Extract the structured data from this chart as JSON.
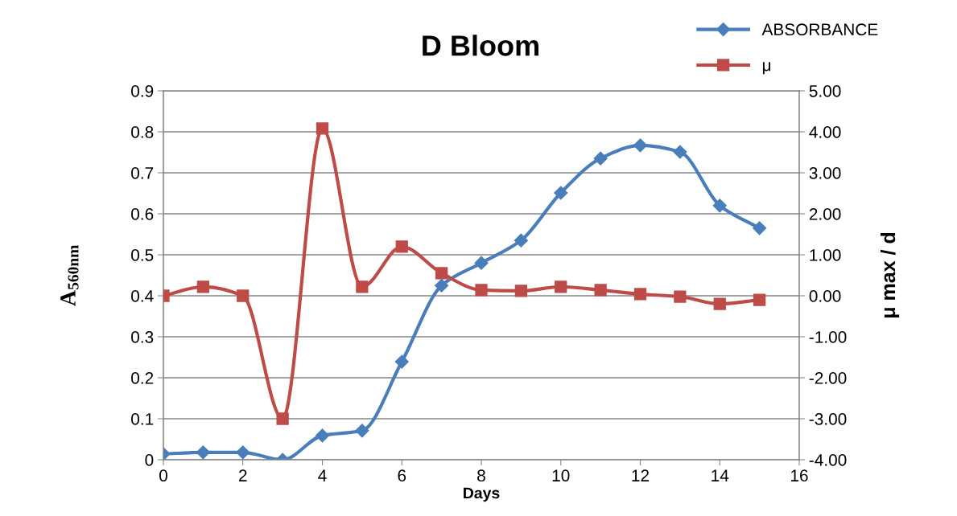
{
  "chart_data": {
    "type": "line",
    "title": "D Bloom",
    "xlabel": "Days",
    "ylabel": "A$_{560nm}$",
    "y2label": "μ max / d",
    "x": [
      0,
      1,
      2,
      3,
      4,
      5,
      6,
      7,
      8,
      9,
      10,
      11,
      12,
      13,
      14,
      15
    ],
    "series": [
      {
        "name": "ABSORBANCE",
        "color": "#4a7ebb",
        "marker": "diamond",
        "values": [
          0.014,
          0.018,
          0.018,
          0.0,
          0.059,
          0.071,
          0.239,
          0.425,
          0.48,
          0.535,
          0.651,
          0.735,
          0.767,
          0.751,
          0.62,
          0.565
        ]
      },
      {
        "name": "μ",
        "color": "#be4b48",
        "marker": "square",
        "axis": "y2",
        "values": [
          0.0,
          0.22,
          0.0,
          -3.0,
          4.08,
          0.22,
          1.2,
          0.55,
          0.14,
          0.12,
          0.22,
          0.14,
          0.04,
          -0.02,
          -0.2,
          -0.1
        ]
      }
    ],
    "xlim": [
      0,
      16
    ],
    "xticks": [
      0,
      2,
      4,
      6,
      8,
      10,
      12,
      14,
      16
    ],
    "ylim": [
      0,
      0.9
    ],
    "yticks": [
      0,
      0.1,
      0.2,
      0.3,
      0.4,
      0.5,
      0.6,
      0.7,
      0.8,
      0.9
    ],
    "y2lim": [
      -4,
      5
    ],
    "y2ticks": [
      {
        "value": -4,
        "label": "-4.00"
      },
      {
        "value": -3,
        "label": "-3.00"
      },
      {
        "value": -2,
        "label": "-2.00"
      },
      {
        "value": -1,
        "label": "-1.00"
      },
      {
        "value": 0,
        "label": "0.00"
      },
      {
        "value": 1,
        "label": "1.00"
      },
      {
        "value": 2,
        "label": "2.00"
      },
      {
        "value": 3,
        "label": "3.00"
      },
      {
        "value": 4,
        "label": "4.00"
      },
      {
        "value": 5,
        "label": "5.00"
      }
    ],
    "grid": "y",
    "legend": "top right",
    "line_style": "solid"
  }
}
